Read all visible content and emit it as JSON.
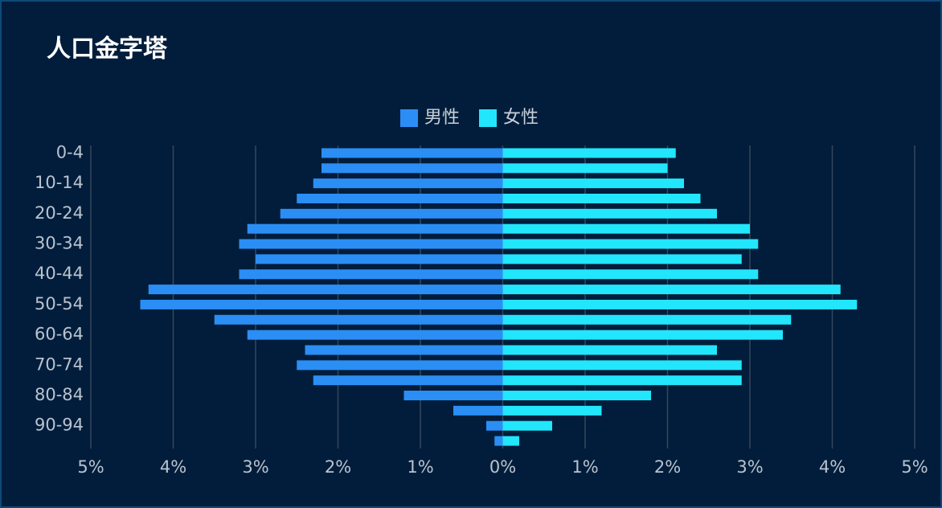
{
  "chart_data": {
    "type": "pyramid",
    "title": "人口金字塔",
    "categories": [
      "0-4",
      null,
      "10-14",
      null,
      "20-24",
      null,
      "30-34",
      null,
      "40-44",
      null,
      "50-54",
      null,
      "60-64",
      null,
      "70-74",
      null,
      "80-84",
      null,
      "90-94",
      null
    ],
    "series": [
      {
        "name": "男性",
        "color": "#2b8ef5",
        "values": [
          -2.2,
          -2.2,
          -2.3,
          -2.5,
          -2.7,
          -3.1,
          -3.2,
          -3.0,
          -3.2,
          -4.3,
          -4.4,
          -3.5,
          -3.1,
          -2.4,
          -2.5,
          -2.3,
          -1.2,
          -0.6,
          -0.2,
          -0.1
        ]
      },
      {
        "name": "女性",
        "color": "#22e6fb",
        "values": [
          2.1,
          2.0,
          2.2,
          2.4,
          2.6,
          3.0,
          3.1,
          2.9,
          3.1,
          4.1,
          4.3,
          3.5,
          3.4,
          2.6,
          2.9,
          2.9,
          1.8,
          1.2,
          0.6,
          0.2
        ]
      }
    ],
    "xlim": [
      -5,
      5
    ],
    "xticks": [
      {
        "value": -5,
        "label": "5%"
      },
      {
        "value": -4,
        "label": "4%"
      },
      {
        "value": -3,
        "label": "3%"
      },
      {
        "value": -2,
        "label": "2%"
      },
      {
        "value": -1,
        "label": "1%"
      },
      {
        "value": 0,
        "label": "0%"
      },
      {
        "value": 1,
        "label": "1%"
      },
      {
        "value": 2,
        "label": "2%"
      },
      {
        "value": 3,
        "label": "3%"
      },
      {
        "value": 4,
        "label": "4%"
      },
      {
        "value": 5,
        "label": "5%"
      }
    ],
    "grid": true,
    "legend": "top"
  }
}
